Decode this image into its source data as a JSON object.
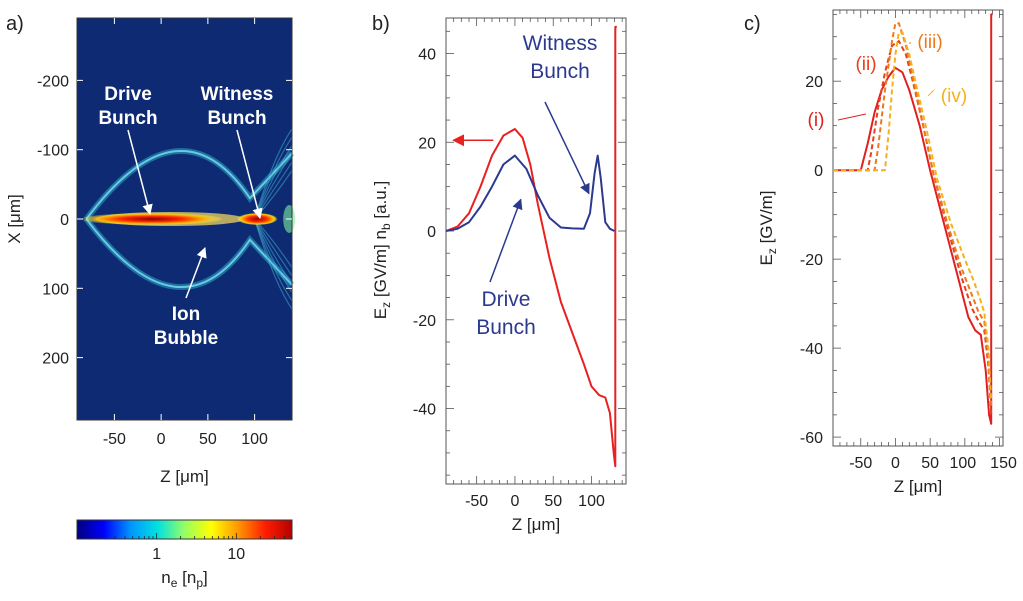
{
  "chart_data": [
    {
      "id": "a",
      "type": "heatmap",
      "panel_label": "a)",
      "xlabel": "Z [μm]",
      "ylabel": "X [μm]",
      "xlim": [
        -90,
        140
      ],
      "ylim": [
        -290,
        290
      ],
      "y_inverted": true,
      "xticks": [
        -50,
        0,
        50,
        100
      ],
      "yticks": [
        -200,
        -100,
        0,
        100,
        200
      ],
      "annotations": [
        {
          "lines": [
            "Drive",
            "Bunch"
          ],
          "target": [
            -10,
            0
          ]
        },
        {
          "lines": [
            "Witness",
            "Bunch"
          ],
          "target": [
            100,
            0
          ]
        },
        {
          "lines": [
            "Ion",
            "Bubble"
          ],
          "target": [
            40,
            40
          ]
        }
      ],
      "colorbar": {
        "label": "n_e [n_p]",
        "scale": "log",
        "ticks": [
          1,
          10
        ],
        "range": [
          0.1,
          50
        ],
        "colors": [
          "#00007f",
          "#0000ff",
          "#0096ff",
          "#00e1e1",
          "#96ff64",
          "#ffff00",
          "#ff9600",
          "#ff1e00",
          "#b40000"
        ]
      },
      "colors": {
        "background": "#0e2a73",
        "bubble": "#2aa8c8",
        "core": "#ff2a00"
      }
    },
    {
      "id": "b",
      "type": "line",
      "panel_label": "b)",
      "xlabel": "Z [μm]",
      "ylabel": "E_z [GV/m]   n_b [a.u.]",
      "xlim": [
        -90,
        145
      ],
      "ylim": [
        -57,
        48
      ],
      "xticks": [
        -50,
        0,
        50,
        100
      ],
      "yticks": [
        40,
        20,
        0,
        -20,
        -40
      ],
      "series": [
        {
          "key": "Ez",
          "color": "#e82020",
          "x": [
            -90,
            -75,
            -60,
            -45,
            -30,
            -15,
            0,
            10,
            20,
            30,
            45,
            60,
            75,
            90,
            100,
            110,
            118,
            124,
            129,
            131,
            131.01,
            132,
            133
          ],
          "y": [
            0,
            1,
            4,
            10,
            17,
            21.5,
            23,
            21,
            15,
            6,
            -6,
            -16,
            -23,
            -30,
            -35,
            -37,
            -37.5,
            -41,
            -50,
            -53,
            46,
            46,
            46
          ]
        },
        {
          "key": "nb",
          "color": "#2b3a8f",
          "x": [
            -90,
            -75,
            -60,
            -45,
            -30,
            -15,
            0,
            15,
            30,
            45,
            60,
            75,
            90,
            98,
            104,
            108,
            112,
            118,
            124,
            130
          ],
          "y": [
            0,
            0.5,
            2,
            5.5,
            10,
            15,
            17,
            14,
            8,
            3,
            0.8,
            0.6,
            0.5,
            4,
            13,
            17,
            12,
            2,
            0.5,
            0
          ]
        }
      ],
      "annotations": [
        {
          "lines": [
            "Witness",
            "Bunch"
          ],
          "color": "#2b3a8f",
          "target": [
            107,
            8
          ]
        },
        {
          "lines": [
            "Drive",
            "Bunch"
          ],
          "color": "#2b3a8f",
          "target": [
            5,
            8
          ]
        }
      ],
      "arrow": {
        "color": "#e82020",
        "at": [
          -70,
          20
        ]
      }
    },
    {
      "id": "c",
      "type": "line",
      "panel_label": "c)",
      "xlabel": "Z [μm]",
      "ylabel": "E_z [GV/m]",
      "xlim": [
        -90,
        155
      ],
      "ylim": [
        -62,
        36
      ],
      "xticks": [
        -50,
        0,
        50,
        100,
        150
      ],
      "yticks": [
        20,
        0,
        -20,
        -40,
        -60
      ],
      "series": [
        {
          "name": "(i)",
          "color": "#e02020",
          "dash": "",
          "x": [
            -90,
            -50,
            -40,
            -30,
            -20,
            -10,
            0,
            10,
            20,
            35,
            50,
            70,
            90,
            105,
            115,
            123,
            130,
            135,
            138,
            138.01,
            140
          ],
          "y": [
            0,
            0,
            6,
            13,
            18,
            21,
            23,
            22,
            18,
            10,
            0,
            -12,
            -24,
            -33,
            -36,
            -37,
            -45,
            -55,
            -57,
            35,
            35
          ]
        },
        {
          "name": "(ii)",
          "color": "#e8401a",
          "dash": "5,3",
          "x": [
            -90,
            -40,
            -35,
            -25,
            -15,
            -5,
            5,
            15,
            25,
            40,
            55,
            75,
            95,
            110,
            120,
            128,
            134,
            137,
            138
          ],
          "y": [
            0,
            0,
            4,
            14,
            22,
            28,
            29,
            26,
            20,
            10,
            -1,
            -13,
            -24,
            -31,
            -34,
            -36,
            -44,
            -52,
            -55
          ]
        },
        {
          "name": "(iii)",
          "color": "#f07818",
          "dash": "5,3",
          "x": [
            -90,
            -30,
            -25,
            -15,
            -5,
            0,
            5,
            15,
            25,
            40,
            55,
            75,
            95,
            110,
            120,
            128,
            134,
            137,
            138
          ],
          "y": [
            0,
            0,
            5,
            18,
            29,
            33,
            33,
            28,
            21,
            10,
            -1,
            -12,
            -22,
            -28,
            -32,
            -34,
            -42,
            -50,
            -53
          ]
        },
        {
          "name": "(iv)",
          "color": "#f5b01e",
          "dash": "5,3",
          "x": [
            -90,
            -15,
            -10,
            -5,
            0,
            5,
            10,
            20,
            30,
            45,
            60,
            80,
            100,
            113,
            122,
            128,
            134,
            137,
            138
          ],
          "y": [
            0,
            0,
            8,
            18,
            26,
            31,
            31,
            26,
            19,
            9,
            -2,
            -12,
            -20,
            -25,
            -29,
            -32,
            -40,
            -49,
            -52
          ]
        }
      ]
    }
  ]
}
